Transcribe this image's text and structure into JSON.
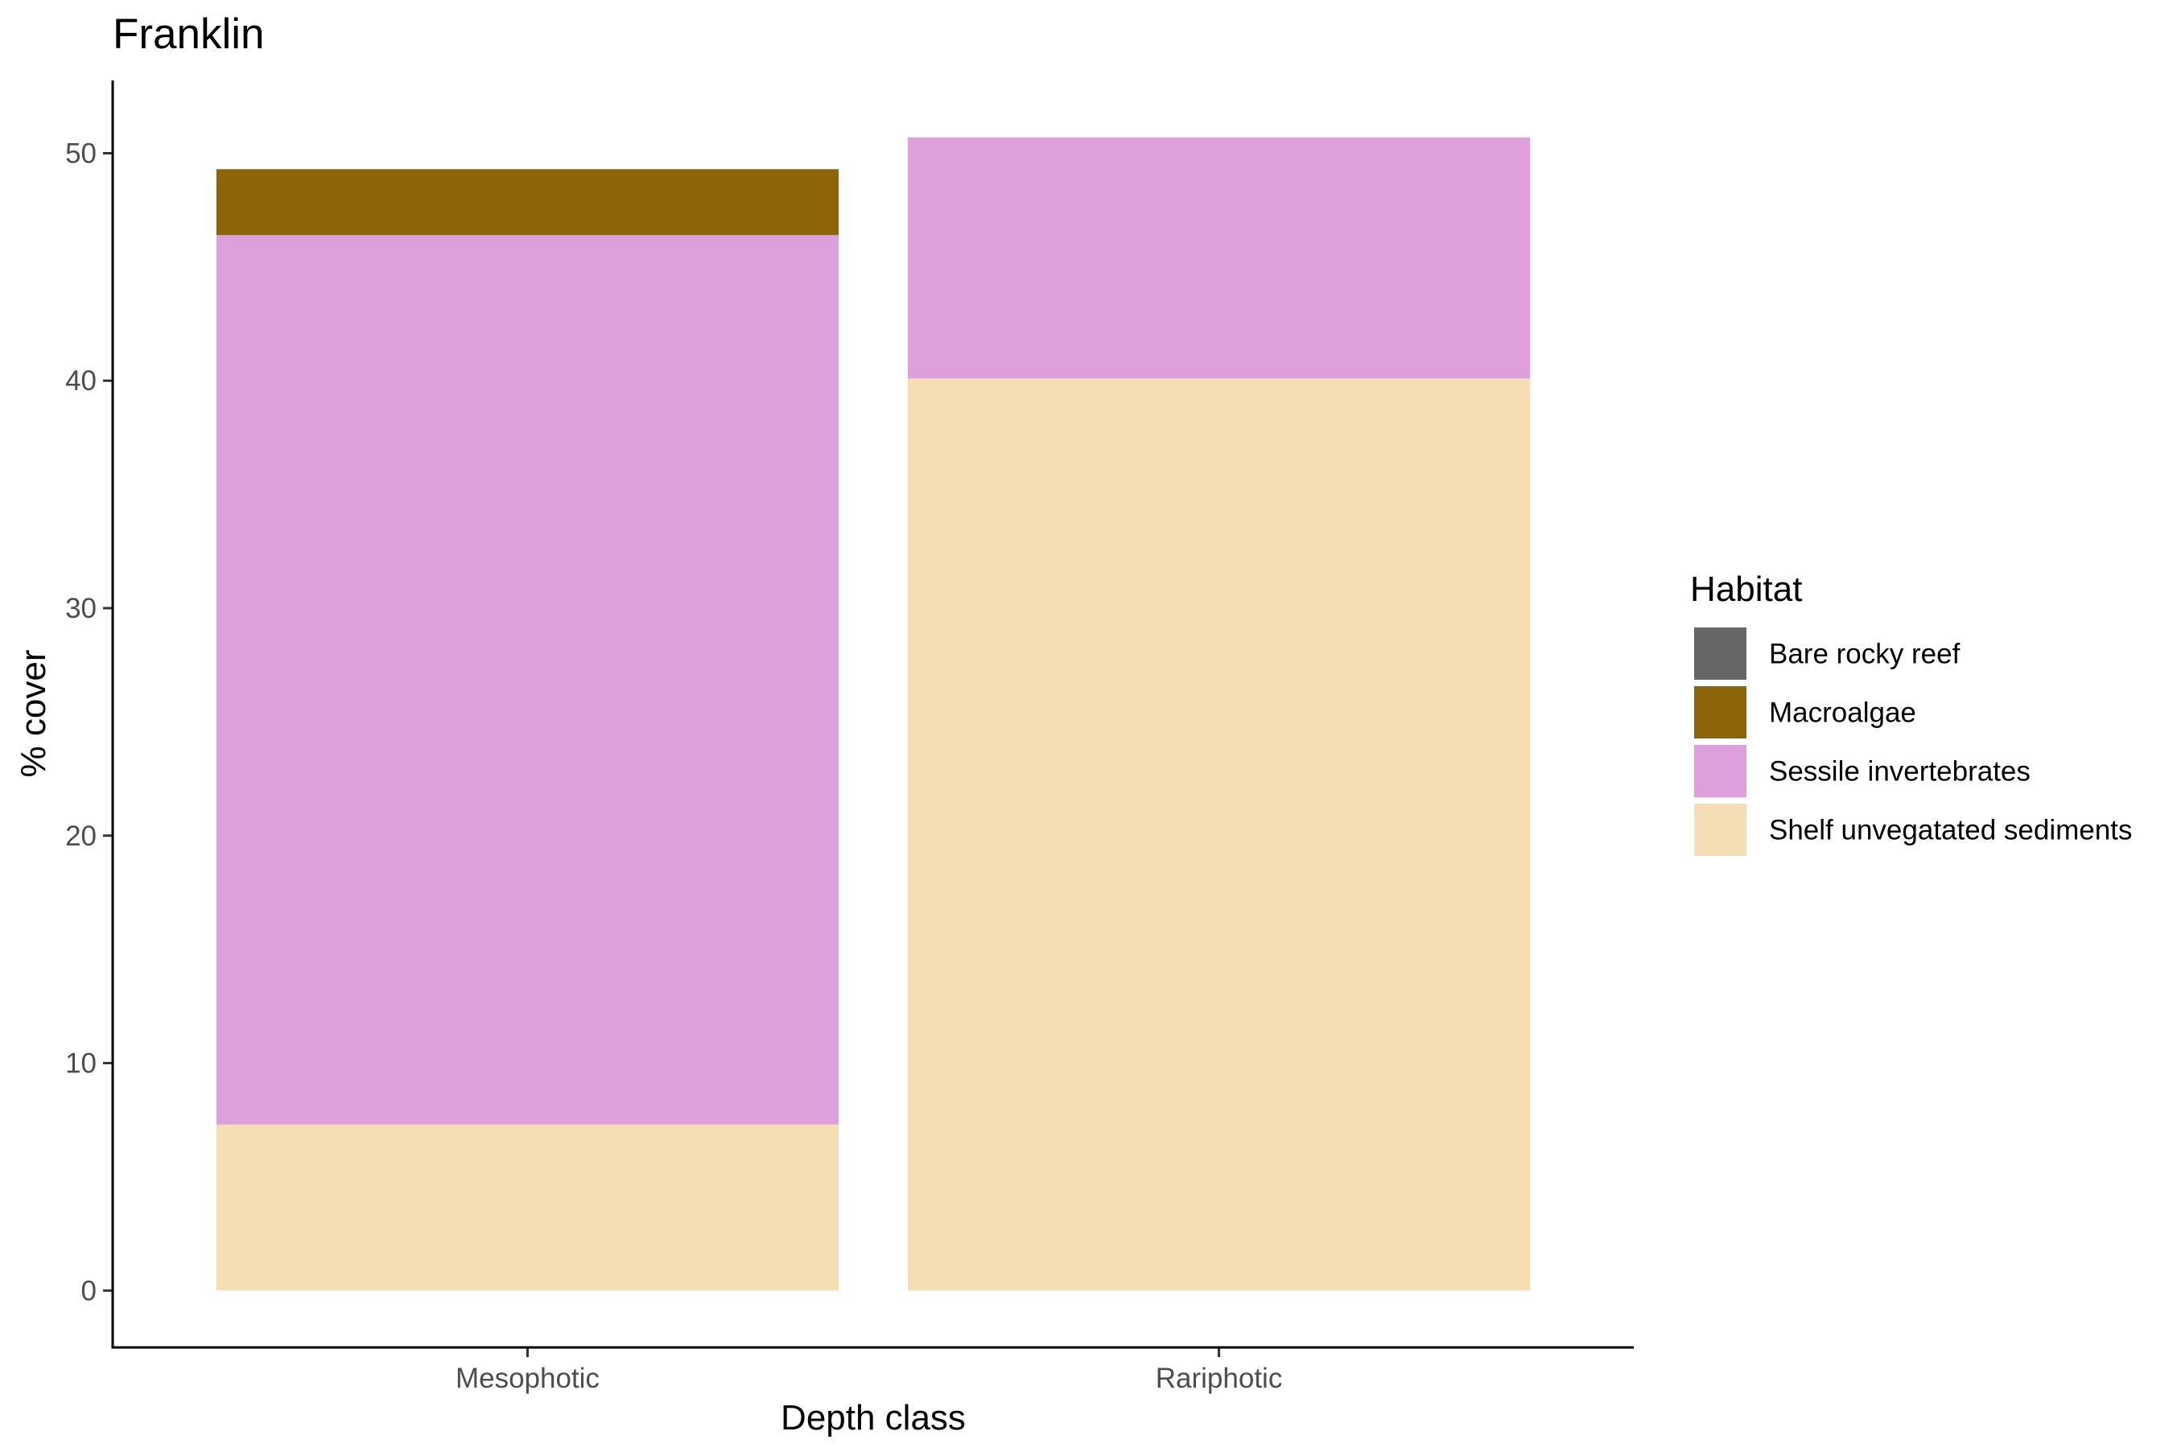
{
  "chart_data": {
    "type": "bar",
    "stacked": true,
    "title": "Franklin",
    "xlabel": "Depth class",
    "ylabel": "% cover",
    "ylim": [
      -2.5,
      53.2
    ],
    "yticks": [
      0,
      10,
      20,
      30,
      40,
      50
    ],
    "grid": false,
    "legend_position": "right",
    "legend_title": "Habitat",
    "categories": [
      "Mesophotic",
      "Rariphotic"
    ],
    "series": [
      {
        "name": "Shelf unvegatated sediments",
        "color": "#F5DEB3",
        "values": [
          7.3,
          40.1
        ]
      },
      {
        "name": "Sessile invertebrates",
        "color": "#DDA0DD",
        "values": [
          39.1,
          10.6
        ]
      },
      {
        "name": "Macroalgae",
        "color": "#8B6508",
        "values": [
          2.9,
          0
        ]
      },
      {
        "name": "Bare rocky reef",
        "color": "#666666",
        "values": [
          0,
          0
        ]
      }
    ],
    "legend_order": [
      "Bare rocky reef",
      "Macroalgae",
      "Sessile invertebrates",
      "Shelf unvegatated sediments"
    ]
  }
}
